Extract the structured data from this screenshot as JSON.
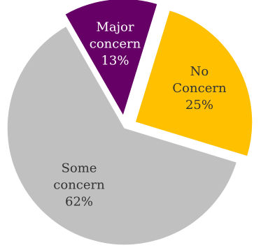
{
  "chart_data": {
    "type": "pie",
    "title": "",
    "slices": [
      {
        "label_lines": [
          "No",
          "Concern"
        ],
        "value": 25,
        "value_label": "25%",
        "color": "#FFC000",
        "text_color": "#333333",
        "exploded": true
      },
      {
        "label_lines": [
          "Some",
          "concern"
        ],
        "value": 62,
        "value_label": "62%",
        "color": "#C0C0C0",
        "text_color": "#333333",
        "exploded": false
      },
      {
        "label_lines": [
          "Major",
          "concern"
        ],
        "value": 13,
        "value_label": "13%",
        "color": "#660066",
        "text_color": "#ffffff",
        "exploded": true
      }
    ],
    "legend": "none",
    "labels_inside": true
  }
}
